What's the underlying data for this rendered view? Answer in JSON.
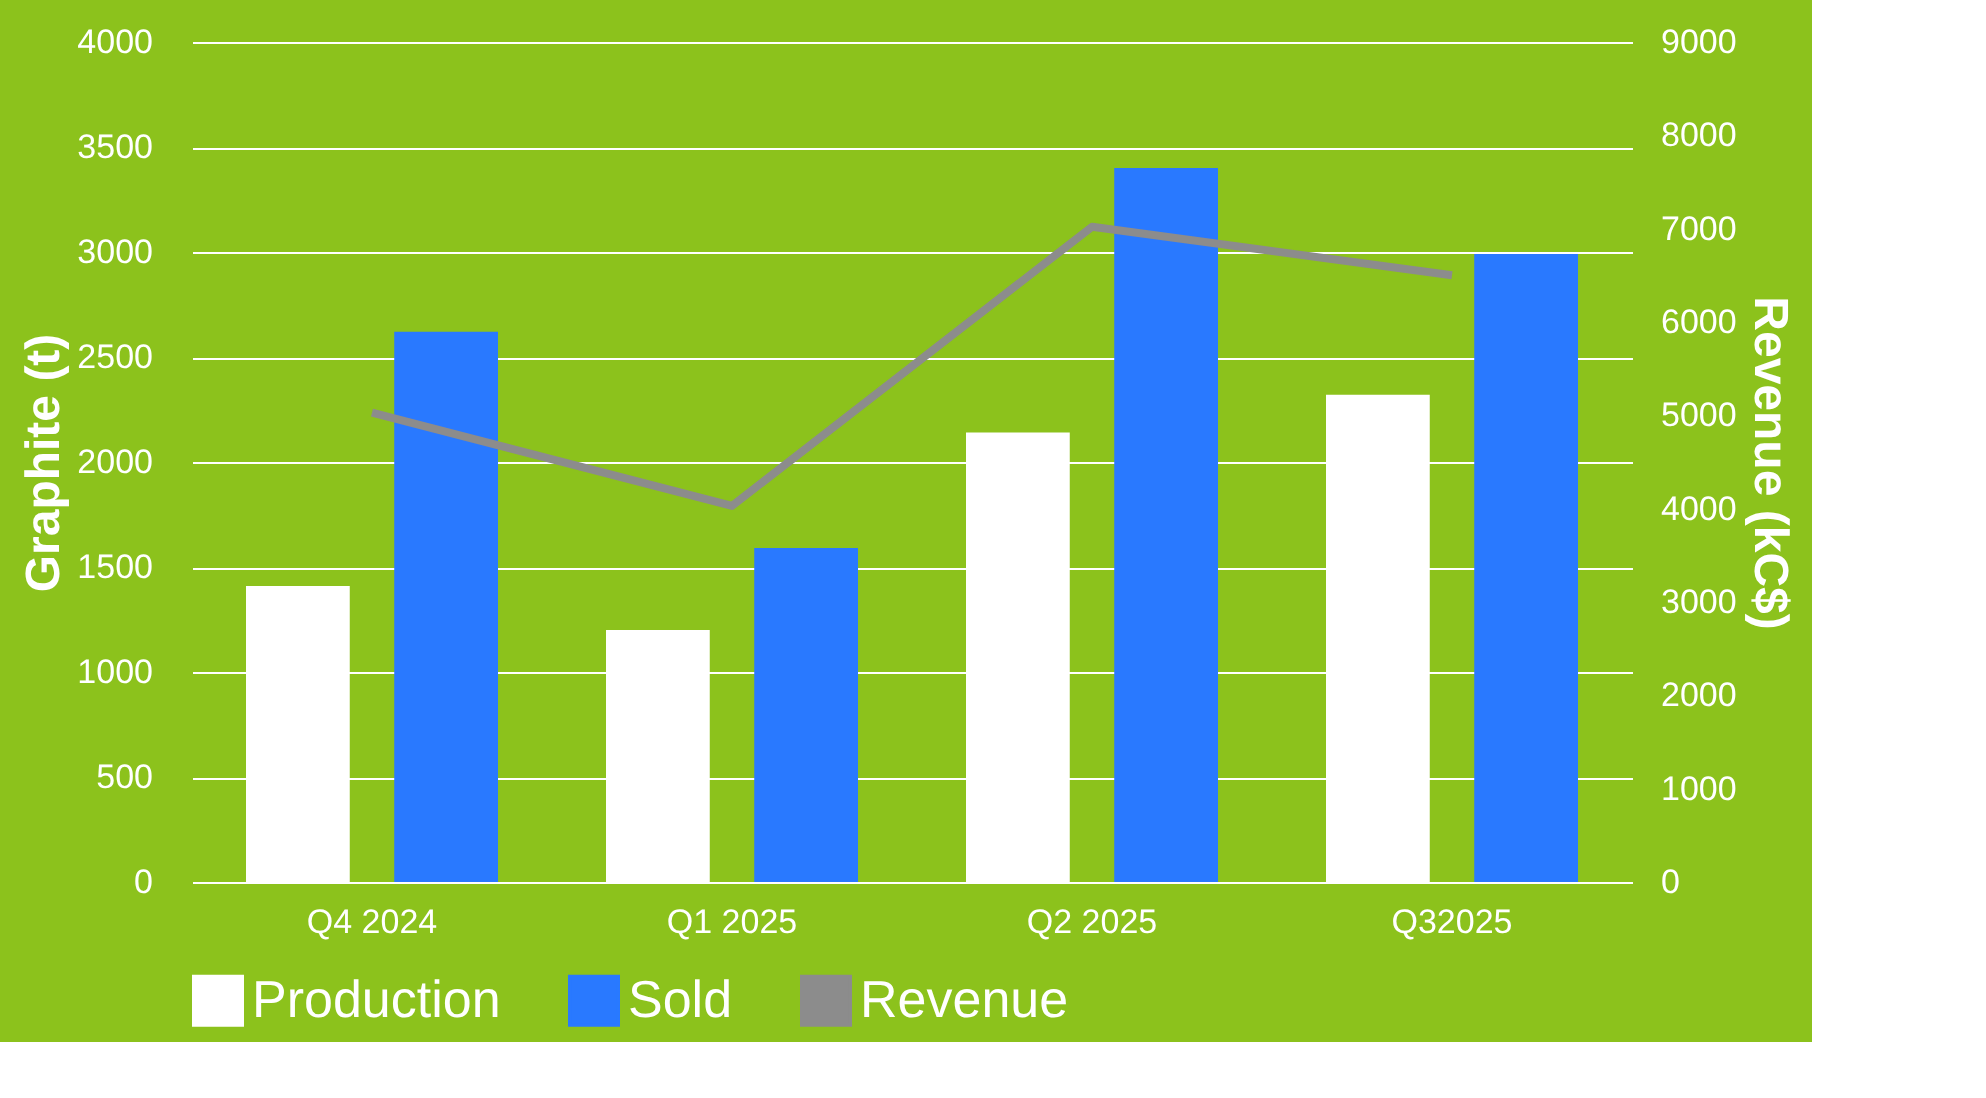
{
  "chart_data": {
    "type": "bar",
    "categories": [
      "Q4 2024",
      "Q1 2025",
      "Q2 2025",
      "Q32025"
    ],
    "ylabel": "Graphite (t)",
    "y2label": "Revenue (kC$)",
    "series": [
      {
        "name": "Production",
        "color": "#ffffff",
        "values": [
          1410,
          1200,
          2140,
          2320
        ]
      },
      {
        "name": "Sold",
        "color": "#2979ff",
        "values": [
          2620,
          1590,
          3400,
          2990
        ]
      },
      {
        "name": "Revenue",
        "type": "line",
        "axis": "y2",
        "color": "#8c8c8c",
        "values": [
          5030,
          4030,
          7020,
          6500
        ]
      }
    ],
    "ylim": [
      0,
      4000
    ],
    "yticks": [
      0,
      500,
      1000,
      1500,
      2000,
      2500,
      3000,
      3500,
      4000
    ],
    "y2lim": [
      0,
      9000
    ],
    "y2ticks": [
      0,
      1000,
      2000,
      3000,
      4000,
      5000,
      6000,
      7000,
      8000,
      9000
    ],
    "grid": "y",
    "legend": "bottom"
  }
}
